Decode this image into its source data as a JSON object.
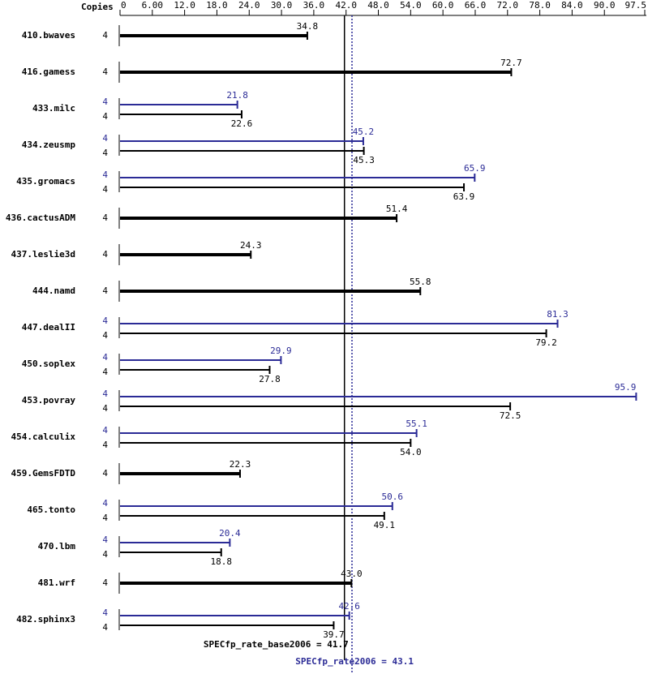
{
  "chart_data": {
    "type": "bar",
    "orientation": "horizontal",
    "axis_label": "Copies",
    "xlim": [
      0,
      97.5
    ],
    "xticks": [
      0,
      {
        "value": 6,
        "label": "6.00"
      },
      {
        "value": 12,
        "label": "12.0"
      },
      {
        "value": 18,
        "label": "18.0"
      },
      {
        "value": 24,
        "label": "24.0"
      },
      {
        "value": 30,
        "label": "30.0"
      },
      {
        "value": 36,
        "label": "36.0"
      },
      {
        "value": 42,
        "label": "42.0"
      },
      {
        "value": 48,
        "label": "48.0"
      },
      {
        "value": 54,
        "label": "54.0"
      },
      {
        "value": 60,
        "label": "60.0"
      },
      {
        "value": 66,
        "label": "66.0"
      },
      {
        "value": 72,
        "label": "72.0"
      },
      {
        "value": 78,
        "label": "78.0"
      },
      {
        "value": 84,
        "label": "84.0"
      },
      {
        "value": 90,
        "label": "90.0"
      },
      97.5
    ],
    "peak_color": "#2b2b96",
    "base_color": "#000000",
    "summary": [
      {
        "label": "SPECfp_rate_base2006 = 41.7",
        "value": 41.7,
        "color": "#000000",
        "style": "solid"
      },
      {
        "label": "SPECfp_rate2006 = 43.1",
        "value": 43.1,
        "color": "#2b2b96",
        "style": "dotted"
      }
    ],
    "benchmarks": [
      {
        "name": "410.bwaves",
        "runs": [
          {
            "copies": 4,
            "value": 34.8
          }
        ]
      },
      {
        "name": "416.gamess",
        "runs": [
          {
            "copies": 4,
            "value": 72.7
          }
        ]
      },
      {
        "name": "433.milc",
        "runs": [
          {
            "copies": 4,
            "value": 21.8
          },
          {
            "copies": 4,
            "value": 22.6
          }
        ]
      },
      {
        "name": "434.zeusmp",
        "runs": [
          {
            "copies": 4,
            "value": 45.2
          },
          {
            "copies": 4,
            "value": 45.3
          }
        ]
      },
      {
        "name": "435.gromacs",
        "runs": [
          {
            "copies": 4,
            "value": 65.9
          },
          {
            "copies": 4,
            "value": 63.9
          }
        ]
      },
      {
        "name": "436.cactusADM",
        "runs": [
          {
            "copies": 4,
            "value": 51.4
          }
        ]
      },
      {
        "name": "437.leslie3d",
        "runs": [
          {
            "copies": 4,
            "value": 24.3
          }
        ]
      },
      {
        "name": "444.namd",
        "runs": [
          {
            "copies": 4,
            "value": 55.8
          }
        ]
      },
      {
        "name": "447.dealII",
        "runs": [
          {
            "copies": 4,
            "value": 81.3
          },
          {
            "copies": 4,
            "value": 79.2
          }
        ]
      },
      {
        "name": "450.soplex",
        "runs": [
          {
            "copies": 4,
            "value": 29.9
          },
          {
            "copies": 4,
            "value": 27.8
          }
        ]
      },
      {
        "name": "453.povray",
        "runs": [
          {
            "copies": 4,
            "value": 95.9
          },
          {
            "copies": 4,
            "value": 72.5
          }
        ]
      },
      {
        "name": "454.calculix",
        "runs": [
          {
            "copies": 4,
            "value": 55.1
          },
          {
            "copies": 4,
            "value": 54,
            "label": "54.0"
          }
        ]
      },
      {
        "name": "459.GemsFDTD",
        "runs": [
          {
            "copies": 4,
            "value": 22.3
          }
        ]
      },
      {
        "name": "465.tonto",
        "runs": [
          {
            "copies": 4,
            "value": 50.6
          },
          {
            "copies": 4,
            "value": 49.1
          }
        ]
      },
      {
        "name": "470.lbm",
        "runs": [
          {
            "copies": 4,
            "value": 20.4
          },
          {
            "copies": 4,
            "value": 18.8
          }
        ]
      },
      {
        "name": "481.wrf",
        "runs": [
          {
            "copies": 4,
            "value": 43,
            "label": "43.0"
          }
        ]
      },
      {
        "name": "482.sphinx3",
        "runs": [
          {
            "copies": 4,
            "value": 42.6
          },
          {
            "copies": 4,
            "value": 39.7
          }
        ]
      }
    ]
  }
}
